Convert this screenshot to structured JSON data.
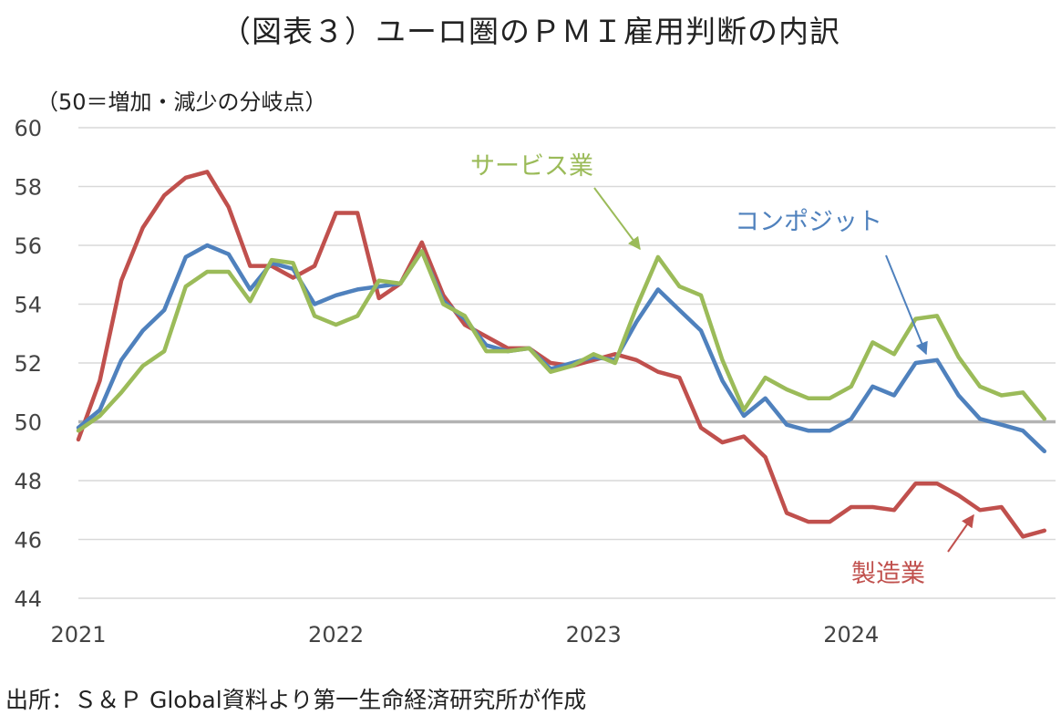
{
  "title": "（図表３）ユーロ圏のＰＭＩ雇用判断の内訳",
  "unit_note": "（50＝増加・減少の分岐点）",
  "source": "出所：Ｓ＆Ｐ Global資料より第一生命経済研究所が作成",
  "chart_data": {
    "type": "line",
    "title": "（図表３）ユーロ圏のＰＭＩ雇用判断の内訳",
    "ylabel": "（50＝増加・減少の分岐点）",
    "xlabel": "",
    "ylim": [
      44,
      60
    ],
    "yticks": [
      44,
      46,
      48,
      50,
      52,
      54,
      56,
      58,
      60
    ],
    "xticks": [
      {
        "label": "2021",
        "index": 0
      },
      {
        "label": "2022",
        "index": 12
      },
      {
        "label": "2023",
        "index": 24
      },
      {
        "label": "2024",
        "index": 36
      }
    ],
    "x": [
      "2021-01",
      "2021-02",
      "2021-03",
      "2021-04",
      "2021-05",
      "2021-06",
      "2021-07",
      "2021-08",
      "2021-09",
      "2021-10",
      "2021-11",
      "2021-12",
      "2022-01",
      "2022-02",
      "2022-03",
      "2022-04",
      "2022-05",
      "2022-06",
      "2022-07",
      "2022-08",
      "2022-09",
      "2022-10",
      "2022-11",
      "2022-12",
      "2023-01",
      "2023-02",
      "2023-03",
      "2023-04",
      "2023-05",
      "2023-06",
      "2023-07",
      "2023-08",
      "2023-09",
      "2023-10",
      "2023-11",
      "2023-12",
      "2024-01",
      "2024-02",
      "2024-03",
      "2024-04",
      "2024-05",
      "2024-06",
      "2024-07",
      "2024-08",
      "2024-09",
      "2024-10"
    ],
    "reference_line": 50,
    "grid": true,
    "series": [
      {
        "name": "製造業",
        "color": "#c0504d",
        "values": [
          49.4,
          51.4,
          54.8,
          56.6,
          57.7,
          58.3,
          58.5,
          57.3,
          55.3,
          55.3,
          54.9,
          55.3,
          57.1,
          57.1,
          54.2,
          54.7,
          56.1,
          54.3,
          53.3,
          52.9,
          52.5,
          52.5,
          52.0,
          51.9,
          52.1,
          52.3,
          52.1,
          51.7,
          51.5,
          49.8,
          49.3,
          49.5,
          48.8,
          46.9,
          46.6,
          46.6,
          47.1,
          47.1,
          47.0,
          47.9,
          47.9,
          47.5,
          47.0,
          47.1,
          46.1,
          46.3
        ]
      },
      {
        "name": "サービス業",
        "color": "#9bbb59",
        "values": [
          49.7,
          50.2,
          51.0,
          51.9,
          52.4,
          54.6,
          55.1,
          55.1,
          54.1,
          55.5,
          55.4,
          53.6,
          53.3,
          53.6,
          54.8,
          54.7,
          55.8,
          54.0,
          53.6,
          52.4,
          52.4,
          52.5,
          51.7,
          51.9,
          52.3,
          52.0,
          53.9,
          55.6,
          54.6,
          54.3,
          52.1,
          50.4,
          51.5,
          51.1,
          50.8,
          50.8,
          51.2,
          52.7,
          52.3,
          53.5,
          53.6,
          52.2,
          51.2,
          50.9,
          51.0,
          50.1
        ]
      },
      {
        "name": "コンポジット",
        "color": "#4f81bd",
        "values": [
          49.8,
          50.4,
          52.1,
          53.1,
          53.8,
          55.6,
          56.0,
          55.7,
          54.5,
          55.4,
          55.2,
          54.0,
          54.3,
          54.5,
          54.6,
          54.7,
          55.8,
          54.1,
          53.5,
          52.6,
          52.4,
          52.5,
          51.8,
          52.0,
          52.2,
          52.1,
          53.4,
          54.5,
          53.8,
          53.1,
          51.4,
          50.2,
          50.8,
          49.9,
          49.7,
          49.7,
          50.1,
          51.2,
          50.9,
          52.0,
          52.1,
          50.9,
          50.1,
          49.9,
          49.7,
          49.0
        ]
      }
    ],
    "annotations": [
      {
        "text": "サービス業",
        "series": "サービス業",
        "color": "#9bbb59"
      },
      {
        "text": "コンポジット",
        "series": "コンポジット",
        "color": "#4f81bd"
      },
      {
        "text": "製造業",
        "series": "製造業",
        "color": "#c0504d"
      }
    ],
    "gridline_color": "#d9d9d9",
    "reference_line_color": "#b3b3b3"
  }
}
